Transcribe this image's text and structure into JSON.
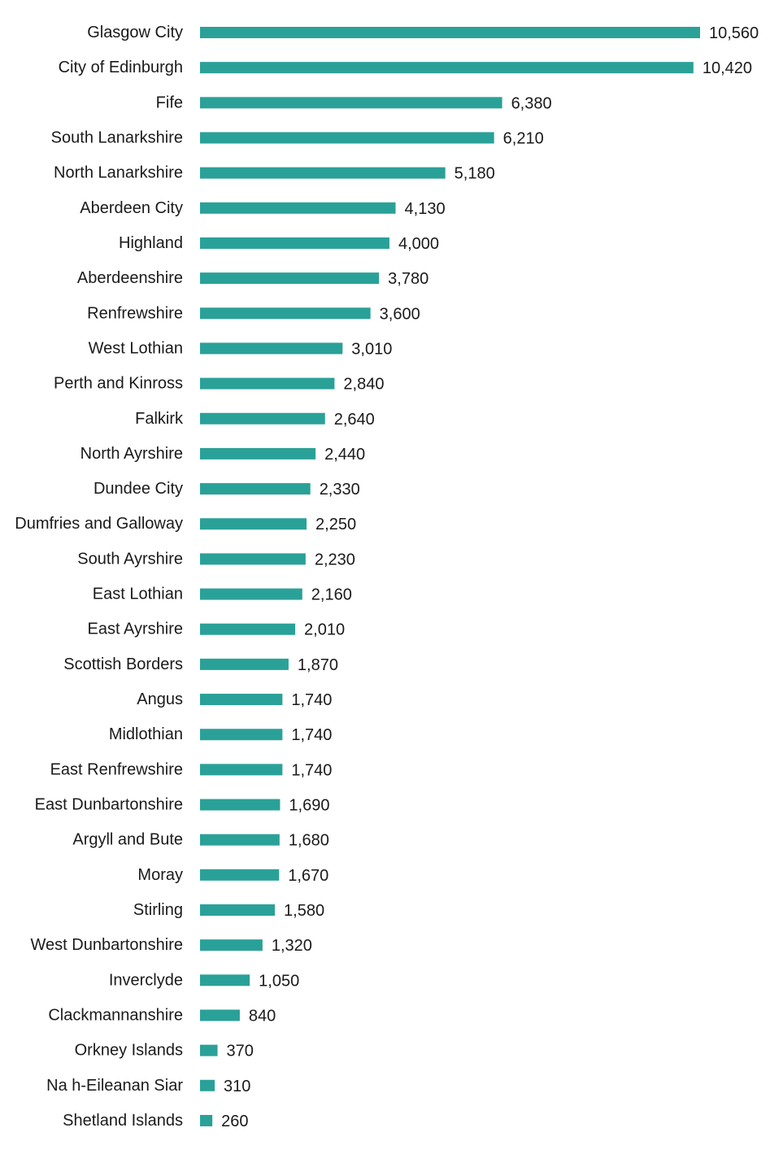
{
  "chart_data": {
    "type": "bar",
    "orientation": "horizontal",
    "title": "",
    "xlabel": "",
    "ylabel": "",
    "grid": false,
    "legend": "none",
    "bar_color": "#2aa198",
    "xlim": [
      0,
      10560
    ],
    "categories": [
      "Glasgow City",
      "City of Edinburgh",
      "Fife",
      "South Lanarkshire",
      "North Lanarkshire",
      "Aberdeen City",
      "Highland",
      "Aberdeenshire",
      "Renfrewshire",
      "West Lothian",
      "Perth and Kinross",
      "Falkirk",
      "North Ayrshire",
      "Dundee City",
      "Dumfries and Galloway",
      "South Ayrshire",
      "East Lothian",
      "East Ayrshire",
      "Scottish Borders",
      "Angus",
      "Midlothian",
      "East Renfrewshire",
      "East Dunbartonshire",
      "Argyll and Bute",
      "Moray",
      "Stirling",
      "West Dunbartonshire",
      "Inverclyde",
      "Clackmannanshire",
      "Orkney Islands",
      "Na h-Eileanan Siar",
      "Shetland Islands"
    ],
    "values": [
      10560,
      10420,
      6380,
      6210,
      5180,
      4130,
      4000,
      3780,
      3600,
      3010,
      2840,
      2640,
      2440,
      2330,
      2250,
      2230,
      2160,
      2010,
      1870,
      1740,
      1740,
      1740,
      1690,
      1680,
      1670,
      1580,
      1320,
      1050,
      840,
      370,
      310,
      260
    ],
    "data_labels": [
      "10,560",
      "10,420",
      "6,380",
      "6,210",
      "5,180",
      "4,130",
      "4,000",
      "3,780",
      "3,600",
      "3,010",
      "2,840",
      "2,640",
      "2,440",
      "2,330",
      "2,250",
      "2,230",
      "2,160",
      "2,010",
      "1,870",
      "1,740",
      "1,740",
      "1,740",
      "1,690",
      "1,680",
      "1,670",
      "1,580",
      "1,320",
      "1,050",
      "840",
      "370",
      "310",
      "260"
    ]
  }
}
